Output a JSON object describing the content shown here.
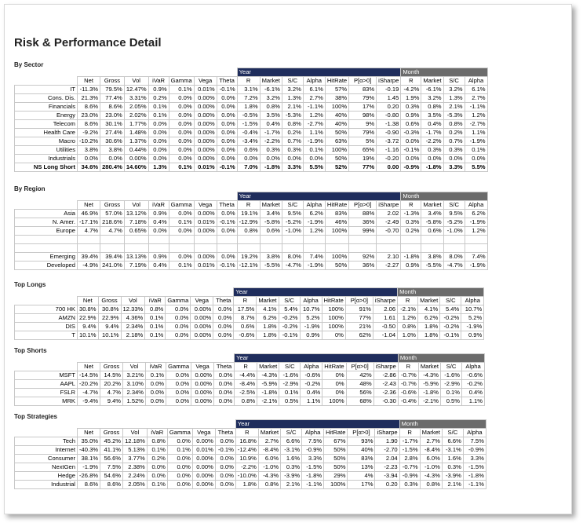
{
  "title": "Risk & Performance Detail",
  "groups": {
    "year": "Year",
    "month": "Month"
  },
  "columns": [
    "Net",
    "Gross",
    "Vol",
    "iVaR",
    "Gamma",
    "Vega",
    "Theta",
    "R",
    "Market",
    "S/C",
    "Alpha",
    "HitRate",
    "P[α>0]",
    "iSharpe",
    "R",
    "Market",
    "S/C",
    "Alpha"
  ],
  "sections": [
    {
      "label": "By Sector",
      "rows": [
        {
          "name": "IT",
          "cells": [
            "-11.3%",
            "79.5%",
            "12.47%",
            "0.9%",
            "0.1%",
            "0.01%",
            "-0.1%",
            "3.1%",
            "-6.1%",
            "3.2%",
            "6.1%",
            "57%",
            "83%",
            "-0.19",
            "-4.2%",
            "-6.1%",
            "3.2%",
            "6.1%"
          ]
        },
        {
          "name": "Cons. Dis.",
          "cells": [
            "21.3%",
            "77.4%",
            "3.31%",
            "0.2%",
            "0.0%",
            "0.00%",
            "0.0%",
            "7.2%",
            "3.2%",
            "1.3%",
            "2.7%",
            "38%",
            "79%",
            "1.45",
            "1.9%",
            "3.2%",
            "1.3%",
            "2.7%"
          ]
        },
        {
          "name": "Financials",
          "cells": [
            "8.6%",
            "8.6%",
            "2.05%",
            "0.1%",
            "0.0%",
            "0.00%",
            "0.0%",
            "1.8%",
            "0.8%",
            "2.1%",
            "-1.1%",
            "100%",
            "17%",
            "0.20",
            "0.3%",
            "0.8%",
            "2.1%",
            "-1.1%"
          ]
        },
        {
          "name": "Energy",
          "cells": [
            "23.0%",
            "23.0%",
            "2.02%",
            "0.1%",
            "0.0%",
            "0.00%",
            "0.0%",
            "-0.5%",
            "3.5%",
            "-5.3%",
            "1.2%",
            "40%",
            "98%",
            "-0.80",
            "0.9%",
            "3.5%",
            "-5.3%",
            "1.2%"
          ]
        },
        {
          "name": "Telecom",
          "cells": [
            "8.6%",
            "30.1%",
            "1.77%",
            "0.0%",
            "0.0%",
            "0.00%",
            "0.0%",
            "-1.5%",
            "0.4%",
            "0.8%",
            "-2.7%",
            "40%",
            "9%",
            "-1.38",
            "0.6%",
            "0.4%",
            "0.8%",
            "-2.7%"
          ]
        },
        {
          "name": "Health Care",
          "cells": [
            "-9.2%",
            "27.4%",
            "1.48%",
            "0.0%",
            "0.0%",
            "0.00%",
            "0.0%",
            "-0.4%",
            "-1.7%",
            "0.2%",
            "1.1%",
            "50%",
            "79%",
            "-0.90",
            "-0.3%",
            "-1.7%",
            "0.2%",
            "1.1%"
          ]
        },
        {
          "name": "Macro",
          "cells": [
            "-10.2%",
            "30.6%",
            "1.37%",
            "0.0%",
            "0.0%",
            "0.00%",
            "0.0%",
            "-3.4%",
            "-2.2%",
            "0.7%",
            "-1.9%",
            "63%",
            "5%",
            "-3.72",
            "0.0%",
            "-2.2%",
            "0.7%",
            "-1.9%"
          ]
        },
        {
          "name": "Utilities",
          "cells": [
            "3.8%",
            "3.8%",
            "0.44%",
            "0.0%",
            "0.0%",
            "0.00%",
            "0.0%",
            "0.6%",
            "0.3%",
            "0.3%",
            "0.1%",
            "100%",
            "65%",
            "-1.16",
            "-0.1%",
            "0.3%",
            "0.3%",
            "0.1%"
          ]
        },
        {
          "name": "Industrials",
          "cells": [
            "0.0%",
            "0.0%",
            "0.00%",
            "0.0%",
            "0.0%",
            "0.00%",
            "0.0%",
            "0.0%",
            "0.0%",
            "0.0%",
            "0.0%",
            "50%",
            "19%",
            "-0.20",
            "0.0%",
            "0.0%",
            "0.0%",
            "0.0%"
          ]
        },
        {
          "name": "NS Long Short",
          "total": true,
          "cells": [
            "34.6%",
            "280.4%",
            "14.60%",
            "1.3%",
            "0.1%",
            "0.01%",
            "-0.1%",
            "7.0%",
            "-1.8%",
            "3.3%",
            "5.5%",
            "52%",
            "77%",
            "0.00",
            "-0.9%",
            "-1.8%",
            "3.3%",
            "5.5%"
          ]
        }
      ]
    },
    {
      "label": "By Region",
      "rows": [
        {
          "name": "Asia",
          "cells": [
            "46.9%",
            "57.0%",
            "13.12%",
            "0.9%",
            "0.0%",
            "0.00%",
            "0.0%",
            "19.1%",
            "3.4%",
            "9.5%",
            "6.2%",
            "83%",
            "88%",
            "2.02",
            "-1.3%",
            "3.4%",
            "9.5%",
            "6.2%"
          ]
        },
        {
          "name": "N. Amer.",
          "cells": [
            "-17.1%",
            "218.6%",
            "7.18%",
            "0.4%",
            "0.1%",
            "0.01%",
            "-0.1%",
            "-12.9%",
            "-5.8%",
            "-5.2%",
            "-1.9%",
            "46%",
            "36%",
            "-2.49",
            "0.3%",
            "-5.8%",
            "-5.2%",
            "-1.9%"
          ]
        },
        {
          "name": "Europe",
          "cells": [
            "4.7%",
            "4.7%",
            "0.65%",
            "0.0%",
            "0.0%",
            "0.00%",
            "0.0%",
            "0.8%",
            "0.6%",
            "-1.0%",
            "1.2%",
            "100%",
            "99%",
            "-0.70",
            "0.2%",
            "0.6%",
            "-1.0%",
            "1.2%"
          ]
        },
        {
          "name": "",
          "cells": [
            "",
            "",
            "",
            "",
            "",
            "",
            "",
            "",
            "",
            "",
            "",
            "",
            "",
            "",
            "",
            "",
            "",
            ""
          ]
        },
        {
          "name": "",
          "cells": [
            "",
            "",
            "",
            "",
            "",
            "",
            "",
            "",
            "",
            "",
            "",
            "",
            "",
            "",
            "",
            "",
            "",
            ""
          ]
        },
        {
          "name": "Emerging",
          "cells": [
            "39.4%",
            "39.4%",
            "13.13%",
            "0.9%",
            "0.0%",
            "0.00%",
            "0.0%",
            "19.2%",
            "3.8%",
            "8.0%",
            "7.4%",
            "100%",
            "92%",
            "2.10",
            "-1.8%",
            "3.8%",
            "8.0%",
            "7.4%"
          ]
        },
        {
          "name": "Developed",
          "cells": [
            "-4.9%",
            "241.0%",
            "7.19%",
            "0.4%",
            "0.1%",
            "0.01%",
            "-0.1%",
            "-12.1%",
            "-5.5%",
            "-4.7%",
            "-1.9%",
            "50%",
            "36%",
            "-2.27",
            "0.9%",
            "-5.5%",
            "-4.7%",
            "-1.9%"
          ]
        }
      ]
    },
    {
      "label": "Top Longs",
      "rows": [
        {
          "name": "700 HK",
          "cells": [
            "30.8%",
            "30.8%",
            "12.33%",
            "0.8%",
            "0.0%",
            "0.00%",
            "0.0%",
            "17.5%",
            "4.1%",
            "5.4%",
            "10.7%",
            "100%",
            "91%",
            "2.06",
            "-2.1%",
            "4.1%",
            "5.4%",
            "10.7%"
          ]
        },
        {
          "name": "AMZN",
          "cells": [
            "22.9%",
            "22.9%",
            "4.36%",
            "0.1%",
            "0.0%",
            "0.00%",
            "0.0%",
            "8.7%",
            "6.2%",
            "-0.2%",
            "5.2%",
            "100%",
            "77%",
            "1.61",
            "1.2%",
            "6.2%",
            "-0.2%",
            "5.2%"
          ]
        },
        {
          "name": "DIS",
          "cells": [
            "9.4%",
            "9.4%",
            "2.34%",
            "0.1%",
            "0.0%",
            "0.00%",
            "0.0%",
            "0.6%",
            "1.8%",
            "-0.2%",
            "-1.9%",
            "100%",
            "21%",
            "-0.50",
            "0.8%",
            "1.8%",
            "-0.2%",
            "-1.9%"
          ]
        },
        {
          "name": "T",
          "cells": [
            "10.1%",
            "10.1%",
            "2.18%",
            "0.1%",
            "0.0%",
            "0.00%",
            "0.0%",
            "-0.6%",
            "1.8%",
            "-0.1%",
            "0.9%",
            "0%",
            "62%",
            "-1.04",
            "1.0%",
            "1.8%",
            "-0.1%",
            "0.9%"
          ]
        }
      ]
    },
    {
      "label": "Top Shorts",
      "rows": [
        {
          "name": "MSFT",
          "cells": [
            "-14.5%",
            "14.5%",
            "3.21%",
            "0.1%",
            "0.0%",
            "0.00%",
            "0.0%",
            "-4.4%",
            "-4.3%",
            "-1.6%",
            "-0.6%",
            "0%",
            "42%",
            "-2.86",
            "-0.7%",
            "-4.3%",
            "-1.6%",
            "-0.6%"
          ]
        },
        {
          "name": "AAPL",
          "cells": [
            "-20.2%",
            "20.2%",
            "3.10%",
            "0.0%",
            "0.0%",
            "0.00%",
            "0.0%",
            "-8.4%",
            "-5.9%",
            "-2.9%",
            "-0.2%",
            "0%",
            "48%",
            "-2.43",
            "-0.7%",
            "-5.9%",
            "-2.9%",
            "-0.2%"
          ]
        },
        {
          "name": "FSLR",
          "cells": [
            "-4.7%",
            "4.7%",
            "2.34%",
            "0.0%",
            "0.0%",
            "0.00%",
            "0.0%",
            "-2.5%",
            "-1.8%",
            "0.1%",
            "0.4%",
            "0%",
            "56%",
            "-2.36",
            "-0.6%",
            "-1.8%",
            "0.1%",
            "0.4%"
          ]
        },
        {
          "name": "MRK",
          "cells": [
            "-9.4%",
            "9.4%",
            "1.52%",
            "0.0%",
            "0.0%",
            "0.00%",
            "0.0%",
            "0.8%",
            "-2.1%",
            "0.5%",
            "1.1%",
            "100%",
            "68%",
            "-0.30",
            "-0.4%",
            "-2.1%",
            "0.5%",
            "1.1%"
          ]
        }
      ]
    },
    {
      "label": "Top Strategies",
      "rows": [
        {
          "name": "Tech",
          "cells": [
            "35.0%",
            "45.2%",
            "12.18%",
            "0.8%",
            "0.0%",
            "0.00%",
            "0.0%",
            "16.8%",
            "2.7%",
            "6.6%",
            "7.5%",
            "67%",
            "93%",
            "1.90",
            "-1.7%",
            "2.7%",
            "6.6%",
            "7.5%"
          ]
        },
        {
          "name": "Internet",
          "cells": [
            "-40.3%",
            "41.1%",
            "5.13%",
            "0.1%",
            "0.1%",
            "0.01%",
            "-0.1%",
            "-12.4%",
            "-8.4%",
            "-3.1%",
            "-0.9%",
            "50%",
            "40%",
            "-2.70",
            "-1.5%",
            "-8.4%",
            "-3.1%",
            "-0.9%"
          ]
        },
        {
          "name": "Consumer",
          "cells": [
            "38.1%",
            "56.6%",
            "3.77%",
            "0.2%",
            "0.0%",
            "0.00%",
            "0.0%",
            "10.9%",
            "6.0%",
            "1.6%",
            "3.3%",
            "50%",
            "83%",
            "2.04",
            "2.8%",
            "6.0%",
            "1.6%",
            "3.3%"
          ]
        },
        {
          "name": "NextGen",
          "cells": [
            "-1.9%",
            "7.5%",
            "2.38%",
            "0.0%",
            "0.0%",
            "0.00%",
            "0.0%",
            "-2.2%",
            "-1.0%",
            "0.3%",
            "-1.5%",
            "50%",
            "13%",
            "-2.23",
            "-0.7%",
            "-1.0%",
            "0.3%",
            "-1.5%"
          ]
        },
        {
          "name": "Hedge",
          "cells": [
            "-26.8%",
            "54.6%",
            "2.24%",
            "0.0%",
            "0.0%",
            "0.00%",
            "0.0%",
            "-10.0%",
            "-4.3%",
            "-3.9%",
            "-1.8%",
            "29%",
            "4%",
            "-3.94",
            "-0.9%",
            "-4.3%",
            "-3.9%",
            "-1.8%"
          ]
        },
        {
          "name": "Industrial",
          "cells": [
            "8.6%",
            "8.6%",
            "2.05%",
            "0.1%",
            "0.0%",
            "0.00%",
            "0.0%",
            "1.8%",
            "0.8%",
            "2.1%",
            "-1.1%",
            "100%",
            "17%",
            "0.20",
            "0.3%",
            "0.8%",
            "2.1%",
            "-1.1%"
          ]
        }
      ]
    }
  ]
}
